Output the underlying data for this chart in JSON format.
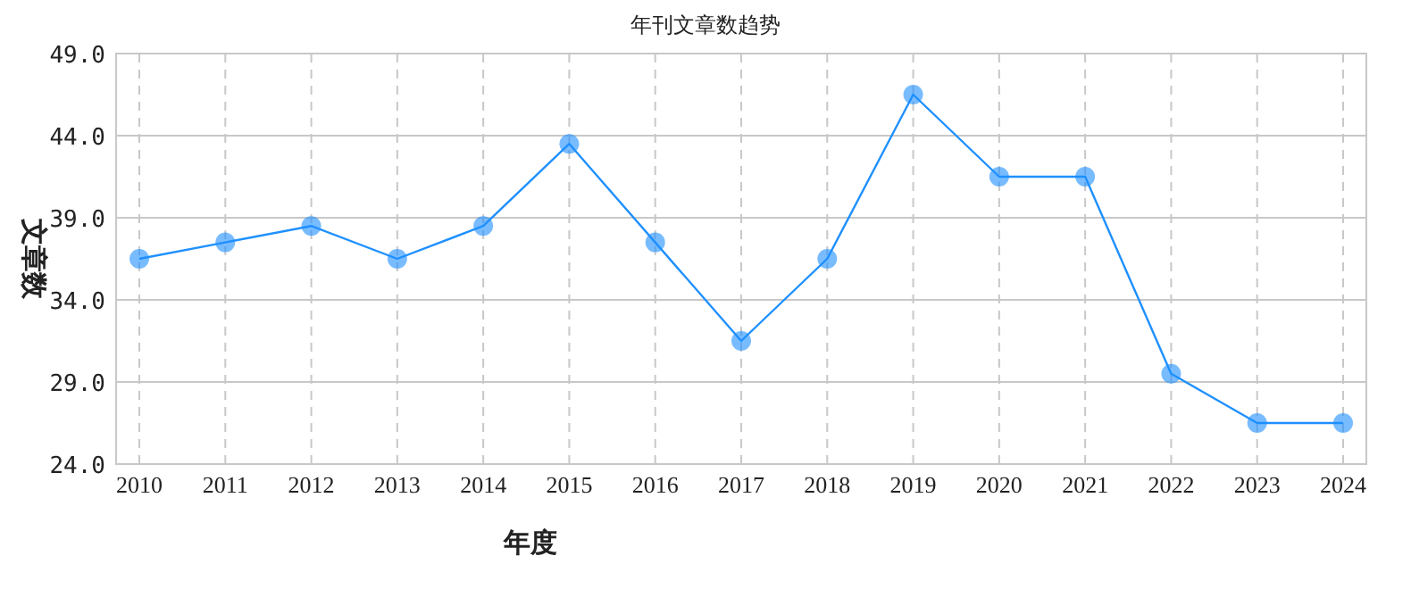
{
  "chart_data": {
    "type": "line",
    "title": "年刊文章数趋势",
    "xlabel": "年度",
    "ylabel": "文章数",
    "categories": [
      "2010",
      "2011",
      "2012",
      "2013",
      "2014",
      "2015",
      "2016",
      "2017",
      "2018",
      "2019",
      "2020",
      "2021",
      "2022",
      "2023",
      "2024"
    ],
    "values": [
      36.5,
      37.5,
      38.5,
      36.5,
      38.5,
      43.5,
      37.5,
      31.5,
      36.5,
      46.5,
      41.5,
      41.5,
      29.5,
      26.5,
      26.5
    ],
    "color": "#1e90ff",
    "ylim": [
      24,
      49
    ],
    "yticks": [
      {
        "value": 24,
        "label": "24.0"
      },
      {
        "value": 29,
        "label": "29.0"
      },
      {
        "value": 34,
        "label": "34.0"
      },
      {
        "value": 39,
        "label": "39.0"
      },
      {
        "value": 44,
        "label": "44.0"
      },
      {
        "value": 49,
        "label": "49.0"
      }
    ],
    "grid": true,
    "marker": "circle"
  }
}
